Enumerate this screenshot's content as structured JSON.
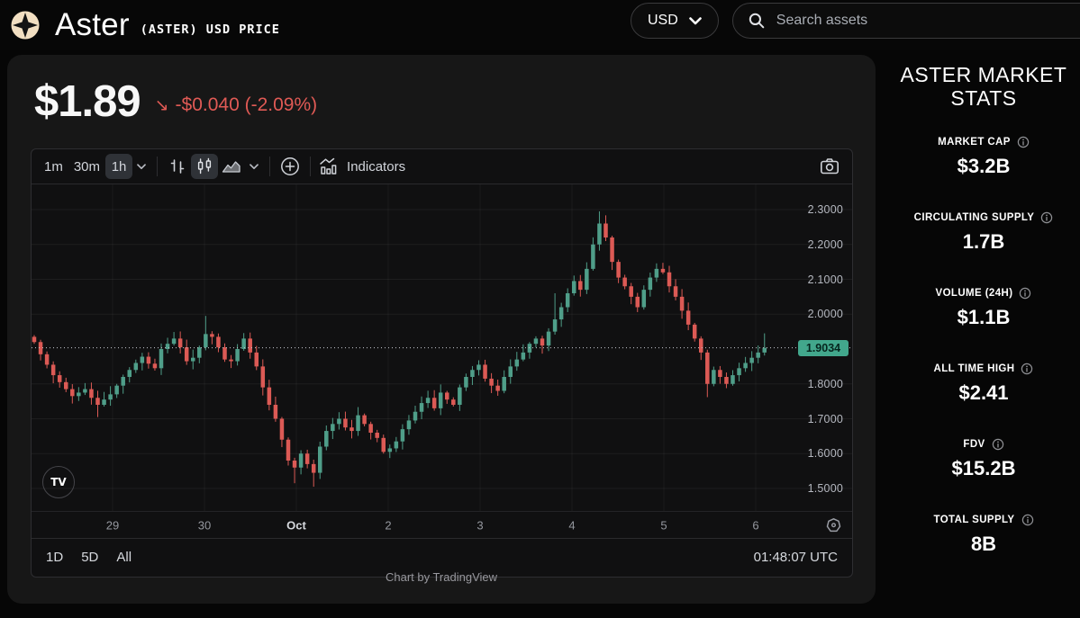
{
  "header": {
    "app_title": "Aster",
    "app_subtitle": "(ASTER) USD PRICE",
    "currency_selected": "USD",
    "search_placeholder": "Search assets"
  },
  "price_header": {
    "price": "$1.89",
    "change_arrow": "↘",
    "change_text": "-$0.040 (-2.09%)",
    "change_color": "#e05a55"
  },
  "toolbar": {
    "timeframes": [
      "1m",
      "30m",
      "1h"
    ],
    "active_timeframe": "1h",
    "indicators_label": "Indicators"
  },
  "chart_data": {
    "type": "candlestick",
    "symbol": "ASTER / USD",
    "interval": "1h",
    "title": "Aster (ASTER) USD price, 1h candles, Sep 29 - Oct 6",
    "last_price": "1.9034",
    "last_price_value": 1.9034,
    "ylim": [
      1.45,
      2.37
    ],
    "y_ticks": [
      "2.3000",
      "2.2000",
      "2.1000",
      "2.0000",
      "1.8000",
      "1.7000",
      "1.6000",
      "1.5000"
    ],
    "y_tick_values": [
      2.3,
      2.2,
      2.1,
      2.0,
      1.8,
      1.7,
      1.6,
      1.5
    ],
    "x_labels": [
      {
        "label": "29",
        "x": 90,
        "major": false
      },
      {
        "label": "30",
        "x": 192,
        "major": false
      },
      {
        "label": "Oct",
        "x": 294,
        "major": true
      },
      {
        "label": "2",
        "x": 396,
        "major": false
      },
      {
        "label": "3",
        "x": 498,
        "major": false
      },
      {
        "label": "4",
        "x": 600,
        "major": false
      },
      {
        "label": "5",
        "x": 702,
        "major": false
      },
      {
        "label": "6",
        "x": 804,
        "major": false
      }
    ],
    "open_first": 1.935,
    "closes": [
      1.92,
      1.885,
      1.855,
      1.825,
      1.805,
      1.785,
      1.765,
      1.775,
      1.785,
      1.76,
      1.74,
      1.755,
      1.77,
      1.795,
      1.82,
      1.84,
      1.86,
      1.878,
      1.858,
      1.845,
      1.9,
      1.915,
      1.93,
      1.905,
      1.865,
      1.875,
      1.905,
      1.943,
      1.935,
      1.905,
      1.87,
      1.865,
      1.9,
      1.93,
      1.89,
      1.85,
      1.79,
      1.74,
      1.7,
      1.64,
      1.58,
      1.56,
      1.6,
      1.57,
      1.545,
      1.62,
      1.665,
      1.685,
      1.7,
      1.675,
      1.665,
      1.71,
      1.685,
      1.66,
      1.645,
      1.605,
      1.615,
      1.635,
      1.67,
      1.695,
      1.72,
      1.745,
      1.76,
      1.73,
      1.775,
      1.755,
      1.74,
      1.79,
      1.82,
      1.84,
      1.855,
      1.815,
      1.795,
      1.78,
      1.82,
      1.85,
      1.87,
      1.89,
      1.915,
      1.93,
      1.91,
      1.95,
      1.985,
      2.02,
      2.06,
      2.095,
      2.07,
      2.13,
      2.2,
      2.26,
      2.22,
      2.15,
      2.105,
      2.08,
      2.05,
      2.02,
      2.07,
      2.105,
      2.13,
      2.12,
      2.08,
      2.05,
      2.01,
      1.97,
      1.93,
      1.89,
      1.8,
      1.84,
      1.82,
      1.8,
      1.825,
      1.845,
      1.86,
      1.875,
      1.89,
      1.9034
    ],
    "wick_overrides": {
      "10": {
        "low": 1.705
      },
      "27": {
        "high": 1.995
      },
      "41": {
        "low": 1.515
      },
      "44": {
        "low": 1.505
      },
      "82": {
        "high": 2.06
      },
      "89": {
        "high": 2.295
      },
      "106": {
        "low": 1.762
      },
      "115": {
        "high": 1.945
      }
    },
    "colors": {
      "up": "#4f9e89",
      "down": "#dc5a55",
      "last_price_badge": "#42a78c"
    },
    "legend_position": "none",
    "grid": true
  },
  "chart_footer": {
    "ranges": [
      "1D",
      "5D",
      "All"
    ],
    "clock": "01:48:07 UTC",
    "attribution": "Chart by TradingView",
    "tv_logo_text": "TV"
  },
  "sidebar": {
    "title": "ASTER MARKET STATS",
    "stats": [
      {
        "label": "MARKET CAP",
        "value": "$3.2B"
      },
      {
        "label": "CIRCULATING SUPPLY",
        "value": "1.7B"
      },
      {
        "label": "VOLUME (24H)",
        "value": "$1.1B"
      },
      {
        "label": "ALL TIME HIGH",
        "value": "$2.41"
      },
      {
        "label": "FDV",
        "value": "$15.2B"
      },
      {
        "label": "TOTAL SUPPLY",
        "value": "8B"
      }
    ]
  }
}
